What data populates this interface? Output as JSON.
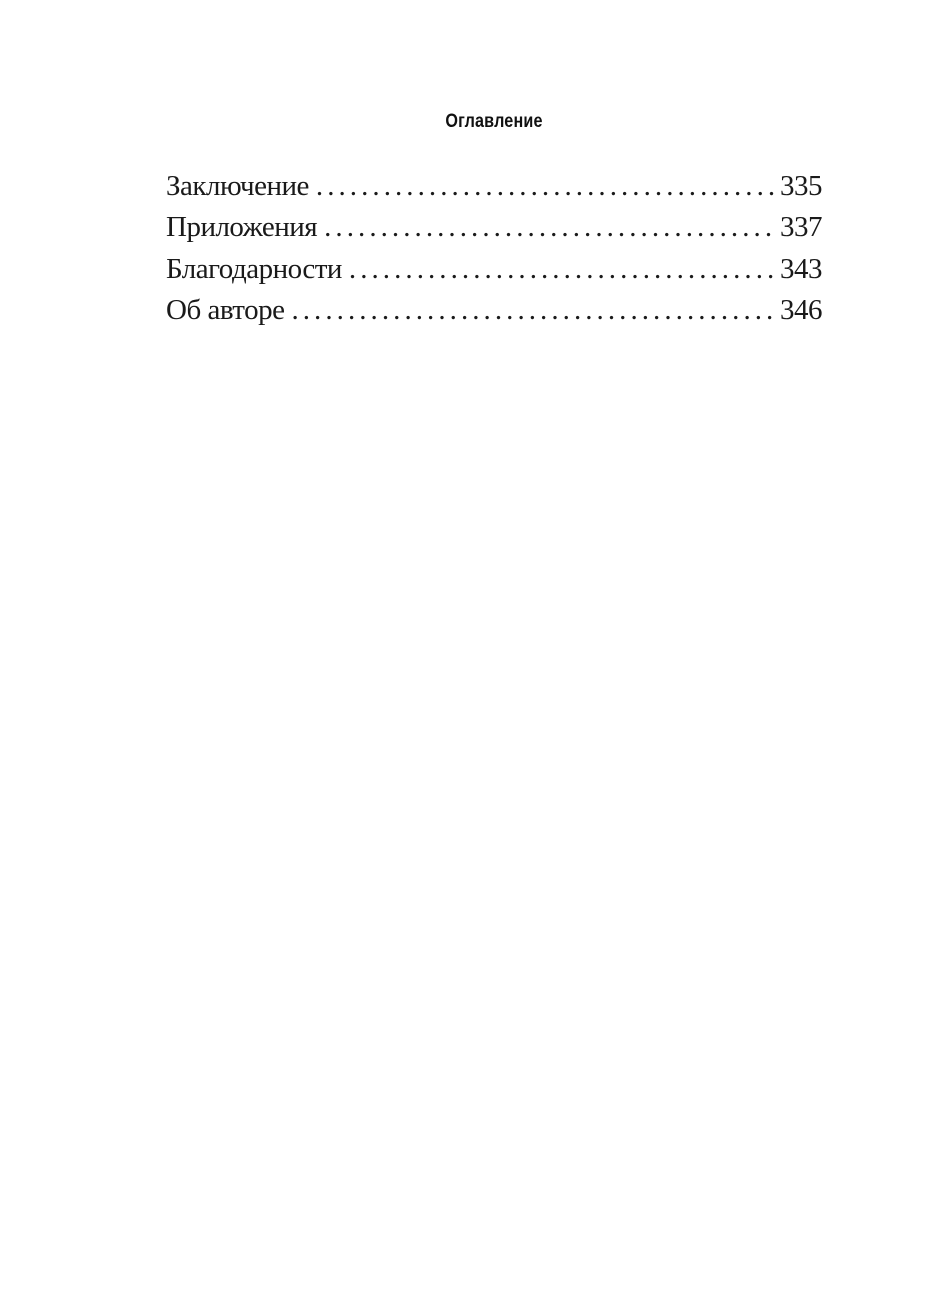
{
  "page": {
    "background_color": "#ffffff",
    "text_color": "#1a1a1a"
  },
  "toc": {
    "title": "Оглавление",
    "entries": [
      {
        "label": "Заключение",
        "page": "335"
      },
      {
        "label": "Приложения",
        "page": "337"
      },
      {
        "label": "Благодарности",
        "page": "343"
      },
      {
        "label": "Об авторе",
        "page": "346"
      }
    ]
  }
}
